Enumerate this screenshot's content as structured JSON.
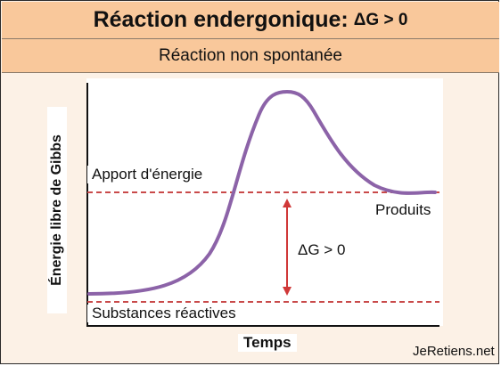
{
  "header": {
    "title": "Réaction endergonique",
    "separator": ":",
    "condition": "ΔG > 0"
  },
  "subheader": {
    "text": "Réaction non spontanée"
  },
  "axes": {
    "ylabel": "Énergie libre de Gibbs",
    "xlabel": "Temps"
  },
  "levels": {
    "energy_input_label": "Apport d'énergie",
    "products_label": "Produits",
    "reactants_label": "Substances réactives",
    "delta_label": "ΔG > 0"
  },
  "credit": "JeRetiens.net",
  "colors": {
    "header_bg": "#f9c89b",
    "panel_bg": "#fcf1e6",
    "curve": "#8c63a8",
    "dashed_lines": "#c94a4a",
    "arrow": "#d03838"
  }
}
